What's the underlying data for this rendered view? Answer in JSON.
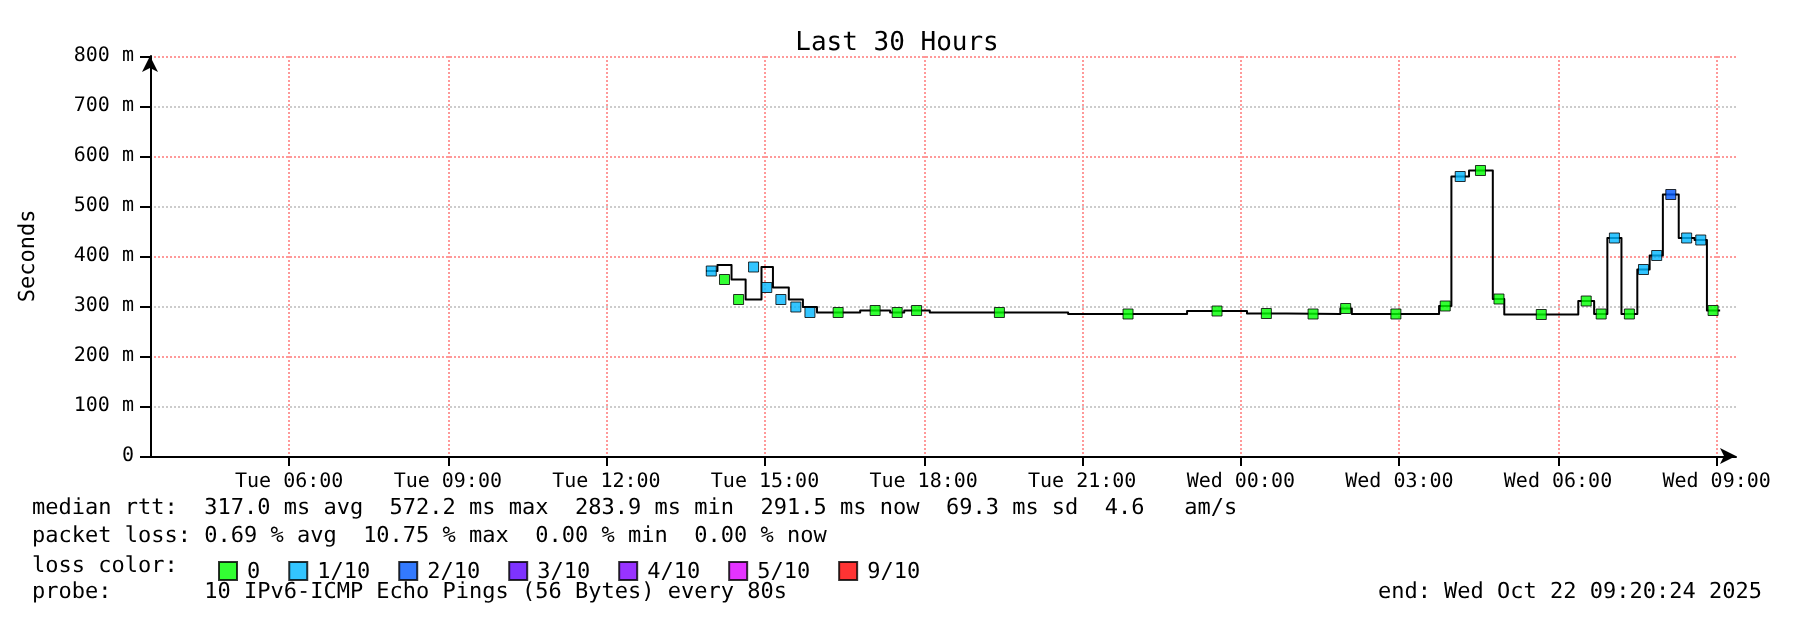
{
  "chart_data": {
    "type": "step",
    "title": "Last 30 Hours",
    "ylabel": "Seconds",
    "legend_title": "loss color:",
    "grid": true,
    "legend": "bottom left",
    "marker": "square",
    "xlim": [
      "2025-10-21T03:22",
      "2025-10-22T09:22"
    ],
    "xticks": [
      {
        "value": "2025-10-21T06:00",
        "label": "Tue 06:00"
      },
      {
        "value": "2025-10-21T09:00",
        "label": "Tue 09:00"
      },
      {
        "value": "2025-10-21T12:00",
        "label": "Tue 12:00"
      },
      {
        "value": "2025-10-21T15:00",
        "label": "Tue 15:00"
      },
      {
        "value": "2025-10-21T18:00",
        "label": "Tue 18:00"
      },
      {
        "value": "2025-10-21T21:00",
        "label": "Tue 21:00"
      },
      {
        "value": "2025-10-22T00:00",
        "label": "Wed 00:00"
      },
      {
        "value": "2025-10-22T03:00",
        "label": "Wed 03:00"
      },
      {
        "value": "2025-10-22T06:00",
        "label": "Wed 06:00"
      },
      {
        "value": "2025-10-22T09:00",
        "label": "Wed 09:00"
      }
    ],
    "ylim": [
      0,
      800
    ],
    "yticks": [
      0,
      {
        "value": 100,
        "label": "100 m"
      },
      {
        "value": 200,
        "label": "200 m"
      },
      {
        "value": 300,
        "label": "300 m"
      },
      {
        "value": 400,
        "label": "400 m"
      },
      {
        "value": 500,
        "label": "500 m"
      },
      {
        "value": 600,
        "label": "600 m"
      },
      {
        "value": 700,
        "label": "700 m"
      },
      {
        "value": 800,
        "label": "800 m"
      }
    ],
    "series": [
      {
        "color": "#000000",
        "marker": "none",
        "x": [
          "2025-10-21T13:53",
          "2025-10-21T14:06",
          "2025-10-21T14:22",
          "2025-10-21T14:38",
          "2025-10-21T14:56",
          "2025-10-21T15:09",
          "2025-10-21T15:27",
          "2025-10-21T15:43",
          "2025-10-21T15:59",
          "2025-10-21T16:48",
          "2025-10-21T17:22",
          "2025-10-21T17:38",
          "2025-10-21T18:07",
          "2025-10-21T20:44",
          "2025-10-21T22:59",
          "2025-10-22T00:07",
          "2025-10-22T00:52",
          "2025-10-22T01:53",
          "2025-10-22T02:06",
          "2025-10-22T03:45",
          "2025-10-22T03:59",
          "2025-10-22T04:19",
          "2025-10-22T04:46",
          "2025-10-22T04:59",
          "2025-10-22T06:23",
          "2025-10-22T06:41",
          "2025-10-22T06:56",
          "2025-10-22T07:12",
          "2025-10-22T07:30",
          "2025-10-22T07:44",
          "2025-10-22T07:59",
          "2025-10-22T08:17",
          "2025-10-22T08:35",
          "2025-10-22T08:49",
          "2025-10-22T09:04"
        ],
        "values": [
          370,
          382,
          353,
          313,
          378,
          337,
          313,
          298,
          287,
          291,
          287,
          291,
          287,
          284,
          290,
          285,
          284,
          295,
          284,
          300,
          559,
          571,
          314,
          283,
          310,
          284,
          436,
          284,
          373,
          401,
          523,
          436,
          432,
          291,
          291
        ]
      },
      {
        "type": "scatter",
        "name": "0",
        "color": "#00ff00",
        "x": [
          "2025-10-21T14:14",
          "2025-10-21T14:30",
          "2025-10-21T16:23",
          "2025-10-21T17:05",
          "2025-10-21T17:30",
          "2025-10-21T17:52",
          "2025-10-21T19:26",
          "2025-10-21T21:52",
          "2025-10-21T23:33",
          "2025-10-22T00:29",
          "2025-10-22T01:22",
          "2025-10-22T01:59",
          "2025-10-22T02:56",
          "2025-10-22T03:52",
          "2025-10-22T04:32",
          "2025-10-22T04:53",
          "2025-10-22T05:41",
          "2025-10-22T06:32",
          "2025-10-22T06:49",
          "2025-10-22T07:21",
          "2025-10-22T08:56"
        ],
        "values": [
          353,
          313,
          287,
          291,
          287,
          291,
          287,
          284,
          290,
          285,
          284,
          295,
          284,
          300,
          571,
          314,
          283,
          310,
          284,
          284,
          291
        ]
      },
      {
        "type": "scatter",
        "name": "1/10",
        "color": "#00b7ff",
        "x": [
          "2025-10-21T13:59",
          "2025-10-21T14:47",
          "2025-10-21T15:02",
          "2025-10-21T15:18",
          "2025-10-21T15:35",
          "2025-10-21T15:51",
          "2025-10-22T04:09",
          "2025-10-22T07:04",
          "2025-10-22T07:37",
          "2025-10-22T07:52",
          "2025-10-22T08:26",
          "2025-10-22T08:42"
        ],
        "values": [
          370,
          378,
          337,
          313,
          298,
          287,
          559,
          436,
          373,
          401,
          436,
          432
        ]
      },
      {
        "type": "scatter",
        "name": "2/10",
        "color": "#0059ff",
        "x": [
          "2025-10-22T08:08"
        ],
        "values": [
          523
        ]
      },
      {
        "type": "scatter",
        "name": "3/10",
        "color": "#5e00ff"
      },
      {
        "type": "scatter",
        "name": "4/10",
        "color": "#7e00ff"
      },
      {
        "type": "scatter",
        "name": "5/10",
        "color": "#dd00ff"
      },
      {
        "type": "scatter",
        "name": "9/10",
        "color": "#ff0000"
      }
    ],
    "annotations": [
      "median rtt:  317.0 ms avg  572.2 ms max  283.9 ms min  291.5 ms now  69.3 ms sd  4.6   am/s",
      "packet loss: 0.69 % avg  10.75 % max  0.00 % min  0.00 % now",
      "probe:       10 IPv6-ICMP Echo Pings (56 Bytes) every 80s",
      "end: Wed Oct 22 09:20:24 2025"
    ]
  }
}
